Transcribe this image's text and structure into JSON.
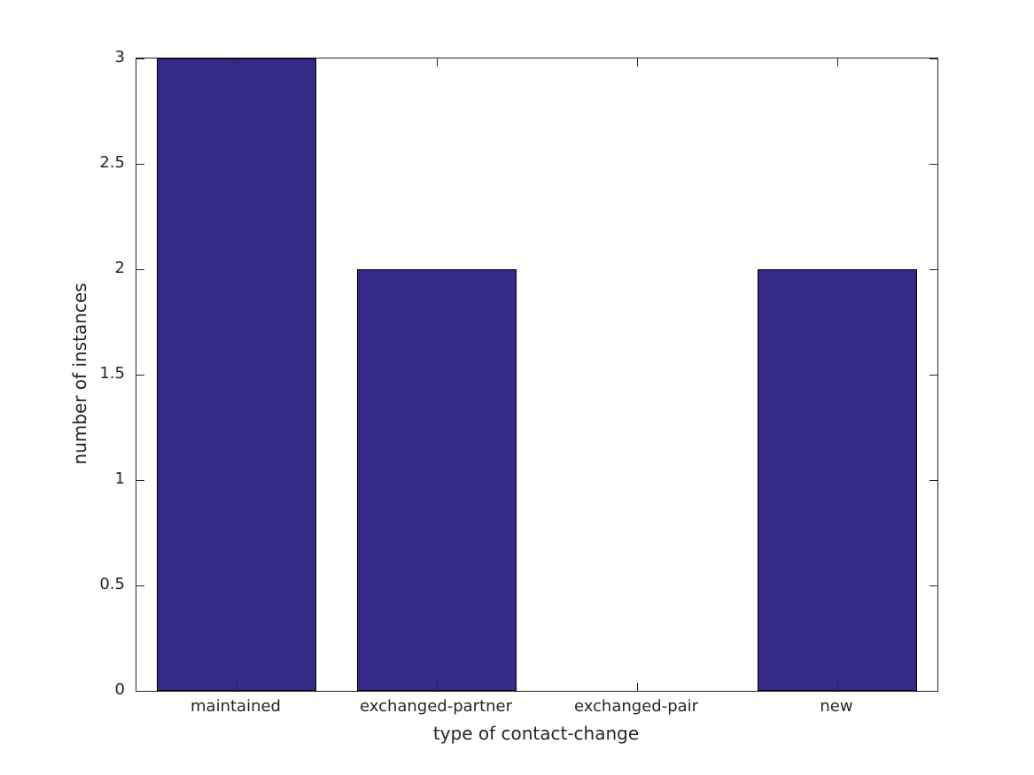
{
  "chart_data": {
    "type": "bar",
    "title": "",
    "categories": [
      "maintained",
      "exchanged-partner",
      "exchanged-pair",
      "new"
    ],
    "values": [
      3,
      2,
      0,
      2
    ],
    "xlabel": "type of contact-change",
    "ylabel": "number of instances",
    "ylim": [
      0,
      3
    ],
    "yticks": [
      0,
      0.5,
      1,
      1.5,
      2,
      2.5,
      3
    ],
    "ytick_labels": [
      "0",
      "0.5",
      "1",
      "1.5",
      "2",
      "2.5",
      "3"
    ],
    "bar_width_fraction": 0.8,
    "grid": false,
    "legend": null,
    "colors": {
      "bar_fill": "#352A87",
      "bar_edge": "#000000",
      "axis": "#262626",
      "text": "#262626",
      "background": "#ffffff"
    }
  }
}
